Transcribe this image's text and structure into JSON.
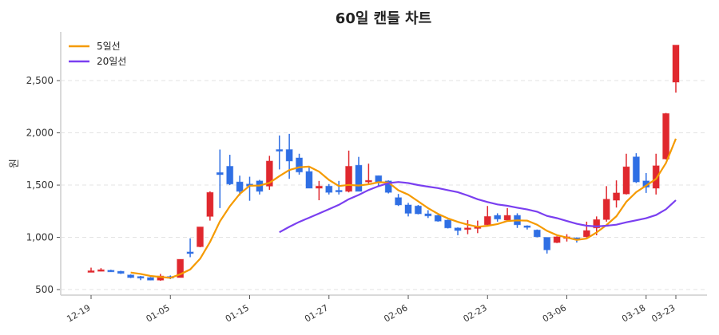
{
  "chart_data": {
    "type": "candlestick",
    "title": "60일 캔들 차트",
    "xlabel": "",
    "ylabel": "원",
    "ylim": [
      447,
      2966
    ],
    "yticks": [
      500,
      1000,
      1500,
      2000,
      2500
    ],
    "ytick_labels": [
      "500",
      "1,000",
      "1,500",
      "2,000",
      "2,500"
    ],
    "xtick_index": [
      0,
      8,
      16,
      24,
      32,
      40,
      48,
      56,
      59
    ],
    "xtick_labels": [
      "12-19",
      "01-05",
      "01-15",
      "01-27",
      "02-06",
      "02-23",
      "03-06",
      "03-18",
      "03-23"
    ],
    "grid": "horizontal dashed",
    "legend_placement": "top-left",
    "colors": {
      "up": "#e0282e",
      "down": "#2f6fe4",
      "ma5": "#f59a00",
      "ma20": "#7a3ff0"
    },
    "ohlc": [
      [
        670,
        710,
        670,
        680
      ],
      [
        675,
        705,
        675,
        690
      ],
      [
        685,
        690,
        670,
        675
      ],
      [
        675,
        680,
        650,
        655
      ],
      [
        640,
        645,
        610,
        615
      ],
      [
        625,
        630,
        590,
        615
      ],
      [
        615,
        620,
        590,
        590
      ],
      [
        590,
        650,
        585,
        630
      ],
      [
        625,
        635,
        600,
        610
      ],
      [
        615,
        790,
        615,
        790
      ],
      [
        860,
        990,
        810,
        845
      ],
      [
        910,
        1100,
        905,
        1100
      ],
      [
        1200,
        1440,
        1160,
        1430
      ],
      [
        1620,
        1840,
        1280,
        1600
      ],
      [
        1680,
        1790,
        1500,
        1510
      ],
      [
        1530,
        1590,
        1400,
        1440
      ],
      [
        1510,
        1580,
        1350,
        1490
      ],
      [
        1540,
        1550,
        1410,
        1440
      ],
      [
        1490,
        1780,
        1455,
        1730
      ],
      [
        1840,
        1975,
        1650,
        1830
      ],
      [
        1840,
        1990,
        1560,
        1730
      ],
      [
        1760,
        1800,
        1600,
        1625
      ],
      [
        1630,
        1670,
        1470,
        1470
      ],
      [
        1470,
        1540,
        1355,
        1490
      ],
      [
        1490,
        1510,
        1410,
        1430
      ],
      [
        1450,
        1540,
        1410,
        1440
      ],
      [
        1440,
        1830,
        1430,
        1680
      ],
      [
        1690,
        1770,
        1440,
        1440
      ],
      [
        1530,
        1705,
        1515,
        1545
      ],
      [
        1590,
        1590,
        1490,
        1530
      ],
      [
        1540,
        1545,
        1420,
        1430
      ],
      [
        1380,
        1415,
        1300,
        1310
      ],
      [
        1310,
        1330,
        1200,
        1230
      ],
      [
        1300,
        1310,
        1220,
        1225
      ],
      [
        1225,
        1260,
        1185,
        1205
      ],
      [
        1210,
        1215,
        1150,
        1155
      ],
      [
        1165,
        1170,
        1085,
        1090
      ],
      [
        1090,
        1095,
        1020,
        1065
      ],
      [
        1075,
        1165,
        1030,
        1090
      ],
      [
        1085,
        1160,
        1040,
        1105
      ],
      [
        1120,
        1300,
        1110,
        1200
      ],
      [
        1210,
        1230,
        1150,
        1175
      ],
      [
        1165,
        1280,
        1160,
        1210
      ],
      [
        1210,
        1230,
        1090,
        1120
      ],
      [
        1110,
        1115,
        1075,
        1095
      ],
      [
        1070,
        1075,
        1000,
        1005
      ],
      [
        1000,
        1000,
        845,
        880
      ],
      [
        950,
        1010,
        945,
        1005
      ],
      [
        990,
        1030,
        960,
        1005
      ],
      [
        995,
        1000,
        950,
        985
      ],
      [
        1005,
        1150,
        1000,
        1065
      ],
      [
        1090,
        1200,
        1020,
        1170
      ],
      [
        1170,
        1490,
        1150,
        1365
      ],
      [
        1355,
        1545,
        1285,
        1425
      ],
      [
        1415,
        1800,
        1410,
        1675
      ],
      [
        1770,
        1805,
        1520,
        1530
      ],
      [
        1540,
        1615,
        1425,
        1480
      ],
      [
        1470,
        1800,
        1410,
        1685
      ],
      [
        1750,
        2190,
        1745,
        2185
      ],
      [
        2485,
        2840,
        2385,
        2840
      ]
    ],
    "series": [
      {
        "name": "5일선",
        "window": 5
      },
      {
        "name": "20일선",
        "window": 20
      }
    ]
  }
}
